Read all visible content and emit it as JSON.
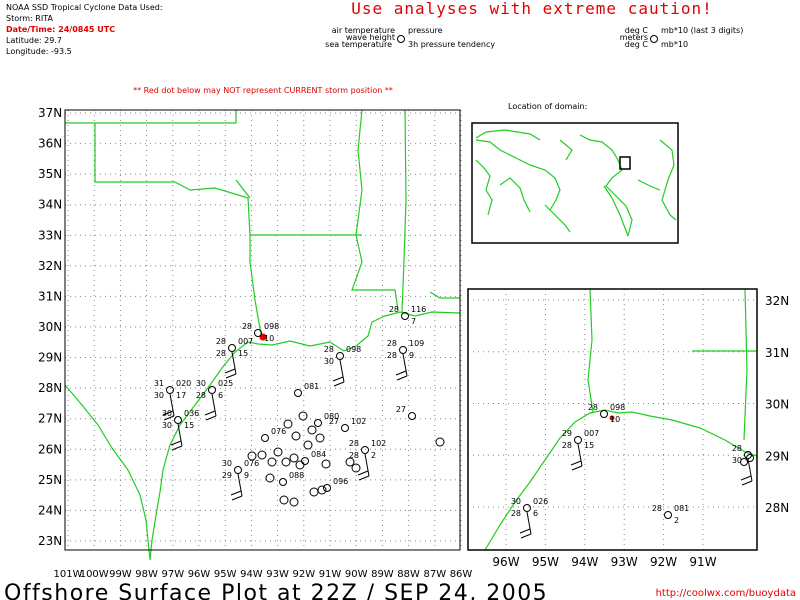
{
  "header": {
    "source": "NOAA SSD Tropical Cyclone Data Used:",
    "storm": "Storm: RITA",
    "datetime": "Date/Time: 24/0845 UTC",
    "latitude": "Latitude: 29.7",
    "longitude": "Longitude: -93.5",
    "caution": "Use analyses with extreme caution!"
  },
  "legend": {
    "air_temperature": "air temperature",
    "pressure": "pressure",
    "wave_height": "wave height",
    "sea_temperature": "sea temperature",
    "tendency": "3h pressure tendency",
    "units": [
      "deg C",
      "mb*10 (last 3 digits)",
      "meters",
      "deg C",
      "mb*10"
    ]
  },
  "warning": "** Red dot below may NOT represent CURRENT storm position **",
  "domain_label": "Location of domain:",
  "main_map": {
    "lat_labels": [
      "37N",
      "36N",
      "35N",
      "34N",
      "33N",
      "32N",
      "31N",
      "30N",
      "29N",
      "28N",
      "27N",
      "26N",
      "25N",
      "24N",
      "23N"
    ],
    "lon_labels": [
      "101W",
      "100W",
      "99W",
      "98W",
      "97W",
      "96W",
      "95W",
      "94W",
      "93W",
      "92W",
      "91W",
      "90W",
      "89W",
      "88W",
      "87W",
      "86W"
    ],
    "stations": [
      {
        "air": "28",
        "pressure": "098",
        "tendency": "10"
      },
      {
        "air": "28",
        "pressure": "116",
        "tendency": "7"
      },
      {
        "air": "28",
        "pressure": "098",
        "sea": "30"
      },
      {
        "air": "28",
        "pressure": "109",
        "sea": "28",
        "tendency": "9"
      },
      {
        "air": "28",
        "pressure": "007",
        "sea": "28",
        "tendency": "15"
      },
      {
        "air": "30",
        "pressure": "025",
        "sea": "28",
        "tendency": "6"
      },
      {
        "air": "31",
        "pressure": "020",
        "sea": "30",
        "tendency": "17"
      },
      {
        "air": "30",
        "pressure": "036",
        "sea": "30",
        "tendency": "15"
      },
      {
        "pressure": "081"
      },
      {
        "air": "27",
        "pressure": "102"
      },
      {
        "air": "28",
        "pressure": "102",
        "sea": "28",
        "tendency": "2"
      },
      {
        "pressure": "084"
      },
      {
        "air": "30",
        "pressure": "076",
        "sea": "29",
        "tendency": "9"
      },
      {
        "pressure": "088"
      },
      {
        "pressure": "096"
      },
      {
        "pressure": "080"
      },
      {
        "pressure": "076"
      },
      {
        "air": "27"
      }
    ]
  },
  "inset_map": {
    "lat_labels": [
      "32N",
      "31N",
      "30N",
      "29N",
      "28N"
    ],
    "lon_labels": [
      "96W",
      "95W",
      "94W",
      "93W",
      "92W",
      "91W"
    ],
    "stations": [
      {
        "air": "28",
        "pressure": "098",
        "tendency": "10"
      },
      {
        "air": "29",
        "pressure": "007",
        "sea": "28",
        "tendency": "15"
      },
      {
        "air": "30",
        "pressure": "026",
        "sea": "28",
        "tendency": "6"
      },
      {
        "air": "28",
        "pressure": "081",
        "tendency": "2"
      },
      {
        "air": "28",
        "sea": "30"
      }
    ]
  },
  "footer": {
    "title": "Offshore Surface Plot at 22Z / SEP 24, 2005",
    "url": "http://coolwx.com/buoydata"
  }
}
